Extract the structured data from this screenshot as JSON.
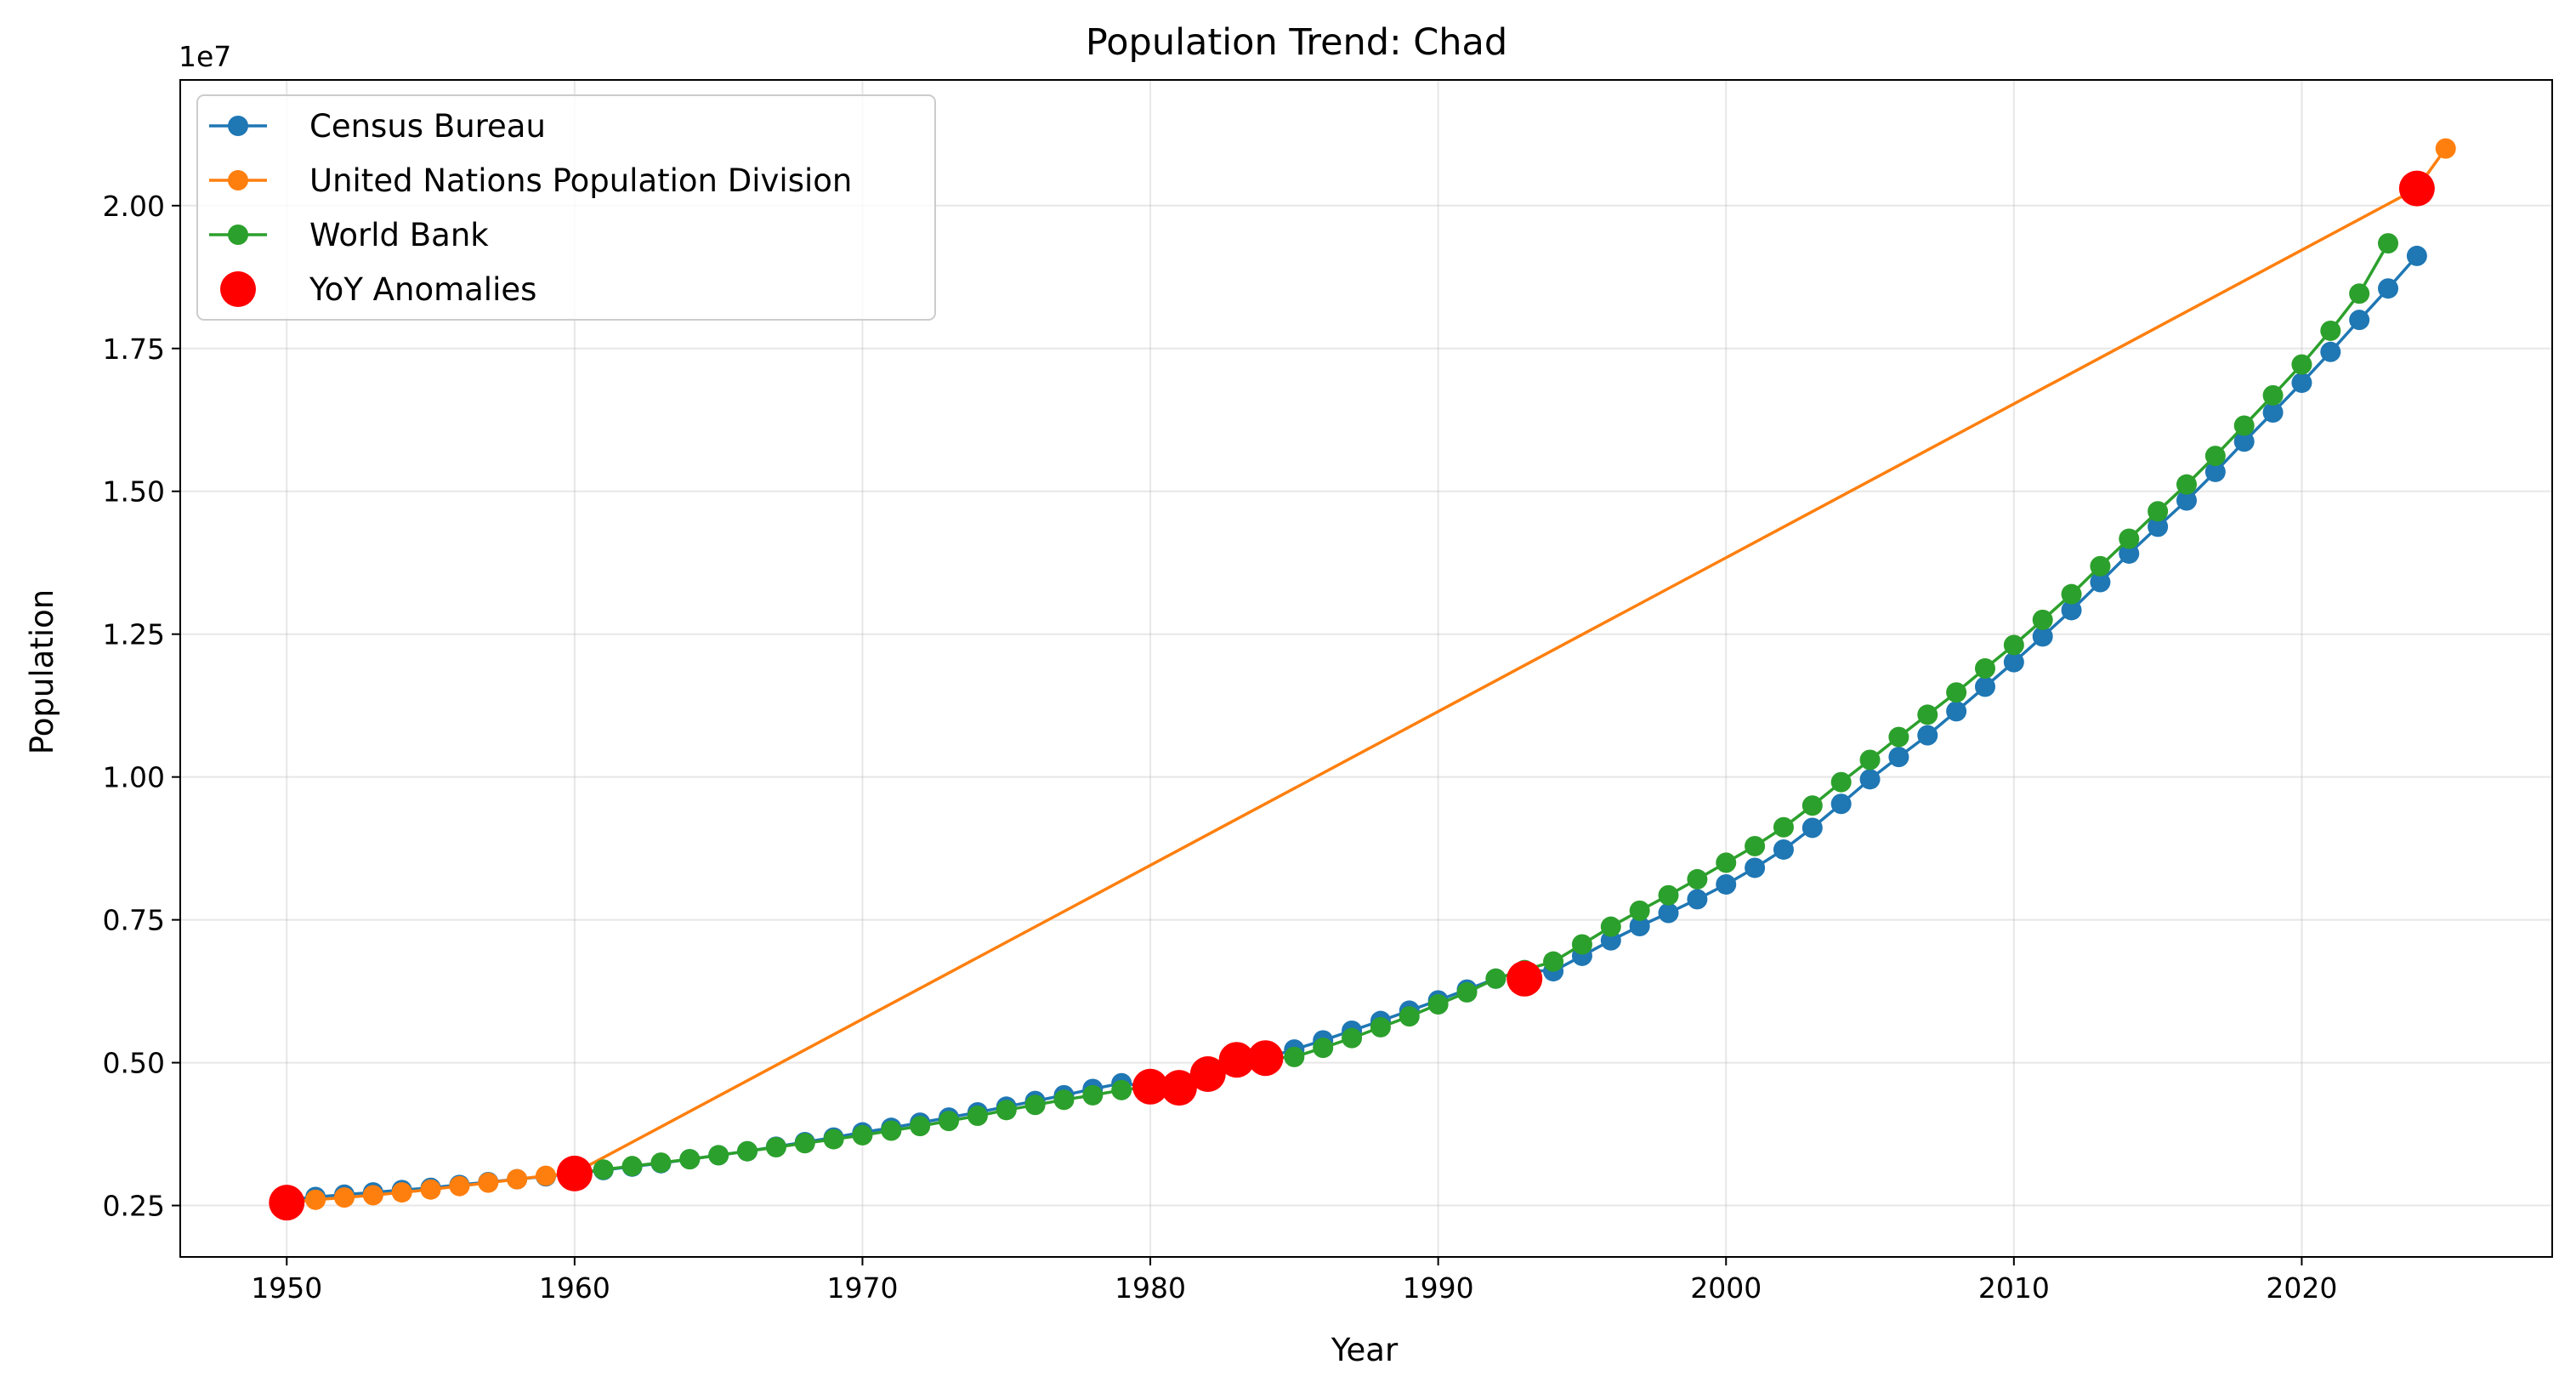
{
  "chart_data": {
    "type": "line",
    "title": "Population Trend: Chad",
    "xlabel": "Year",
    "ylabel": "Population",
    "y_offset_label": "1e7",
    "y_scale": 10000000,
    "xlim": [
      1946.3,
      2028.7
    ],
    "ylim": [
      1600000,
      22200000
    ],
    "x_ticks": [
      1950,
      1960,
      1970,
      1980,
      1990,
      2000,
      2010,
      2020
    ],
    "x_tick_labels": [
      "1950",
      "1960",
      "1970",
      "1980",
      "1990",
      "2000",
      "2010",
      "2020"
    ],
    "y_ticks": [
      2500000,
      5000000,
      7500000,
      10000000,
      12500000,
      15000000,
      17500000,
      20000000
    ],
    "y_tick_labels": [
      "0.25",
      "0.50",
      "0.75",
      "1.00",
      "1.25",
      "1.50",
      "1.75",
      "2.00"
    ],
    "grid": true,
    "legend_position": "top-left",
    "series": [
      {
        "name": "Census Bureau",
        "color": "#1f77b4",
        "x": [
          1950,
          1951,
          1952,
          1953,
          1954,
          1955,
          1956,
          1957,
          1958,
          1959,
          1960,
          1961,
          1962,
          1963,
          1964,
          1965,
          1966,
          1967,
          1968,
          1969,
          1970,
          1971,
          1972,
          1973,
          1974,
          1975,
          1976,
          1977,
          1978,
          1979,
          1980,
          1981,
          1982,
          1983,
          1984,
          1985,
          1986,
          1987,
          1988,
          1989,
          1990,
          1991,
          1992,
          1993,
          1994,
          1995,
          1996,
          1997,
          1998,
          1999,
          2000,
          2001,
          2002,
          2003,
          2004,
          2005,
          2006,
          2007,
          2008,
          2009,
          2010,
          2011,
          2012,
          2013,
          2014,
          2015,
          2016,
          2017,
          2018,
          2019,
          2020,
          2021,
          2022,
          2023,
          2024
        ],
        "y": [
          2600000,
          2650000,
          2690000,
          2730000,
          2770000,
          2810000,
          2860000,
          2910000,
          2960000,
          3010000,
          3060000,
          3120000,
          3180000,
          3240000,
          3310000,
          3380000,
          3450000,
          3530000,
          3610000,
          3690000,
          3780000,
          3860000,
          3950000,
          4040000,
          4130000,
          4230000,
          4330000,
          4430000,
          4540000,
          4640000,
          4580000,
          4560000,
          4800000,
          5050000,
          5080000,
          5230000,
          5390000,
          5560000,
          5730000,
          5910000,
          6090000,
          6280000,
          6470000,
          6620000,
          6600000,
          6870000,
          7140000,
          7390000,
          7620000,
          7860000,
          8120000,
          8410000,
          8730000,
          9110000,
          9530000,
          9960000,
          10350000,
          10730000,
          11150000,
          11580000,
          12010000,
          12460000,
          12920000,
          13410000,
          13910000,
          14380000,
          14840000,
          15340000,
          15870000,
          16380000,
          16900000,
          17440000,
          18000000,
          18550000,
          19120000
        ]
      },
      {
        "name": "United Nations Population Division",
        "color": "#ff7f0e",
        "x": [
          1950,
          1951,
          1952,
          1953,
          1954,
          1955,
          1956,
          1957,
          1958,
          1959,
          1960,
          2024,
          2025
        ],
        "y": [
          2550000,
          2600000,
          2640000,
          2680000,
          2730000,
          2780000,
          2840000,
          2900000,
          2960000,
          3020000,
          3070000,
          20300000,
          21000000
        ]
      },
      {
        "name": "World Bank",
        "color": "#2ca02c",
        "x": [
          1960,
          1961,
          1962,
          1963,
          1964,
          1965,
          1966,
          1967,
          1968,
          1969,
          1970,
          1971,
          1972,
          1973,
          1974,
          1975,
          1976,
          1977,
          1978,
          1979,
          1980,
          1981,
          1982,
          1983,
          1984,
          1985,
          1986,
          1987,
          1988,
          1989,
          1990,
          1991,
          1992,
          1993,
          1994,
          1995,
          1996,
          1997,
          1998,
          1999,
          2000,
          2001,
          2002,
          2003,
          2004,
          2005,
          2006,
          2007,
          2008,
          2009,
          2010,
          2011,
          2012,
          2013,
          2014,
          2015,
          2016,
          2017,
          2018,
          2019,
          2020,
          2021,
          2022,
          2023
        ],
        "y": [
          3060000,
          3130000,
          3190000,
          3250000,
          3310000,
          3380000,
          3450000,
          3520000,
          3590000,
          3660000,
          3730000,
          3810000,
          3890000,
          3980000,
          4070000,
          4170000,
          4260000,
          4350000,
          4430000,
          4520000,
          4580000,
          4560000,
          4800000,
          5050000,
          5080000,
          5100000,
          5260000,
          5430000,
          5620000,
          5810000,
          6020000,
          6230000,
          6470000,
          6620000,
          6770000,
          7070000,
          7380000,
          7660000,
          7930000,
          8210000,
          8500000,
          8790000,
          9120000,
          9500000,
          9910000,
          10300000,
          10700000,
          11090000,
          11480000,
          11900000,
          12310000,
          12750000,
          13200000,
          13690000,
          14170000,
          14650000,
          15120000,
          15620000,
          16150000,
          16680000,
          17220000,
          17810000,
          18460000,
          19340000
        ]
      }
    ],
    "anomalies": {
      "name": "YoY Anomalies",
      "color": "#ff0000",
      "x": [
        1950,
        1960,
        1980,
        1981,
        1982,
        1983,
        1984,
        1993,
        2024
      ],
      "y": [
        2550000,
        3060000,
        4580000,
        4560000,
        4800000,
        5050000,
        5080000,
        6470000,
        20300000
      ]
    }
  }
}
